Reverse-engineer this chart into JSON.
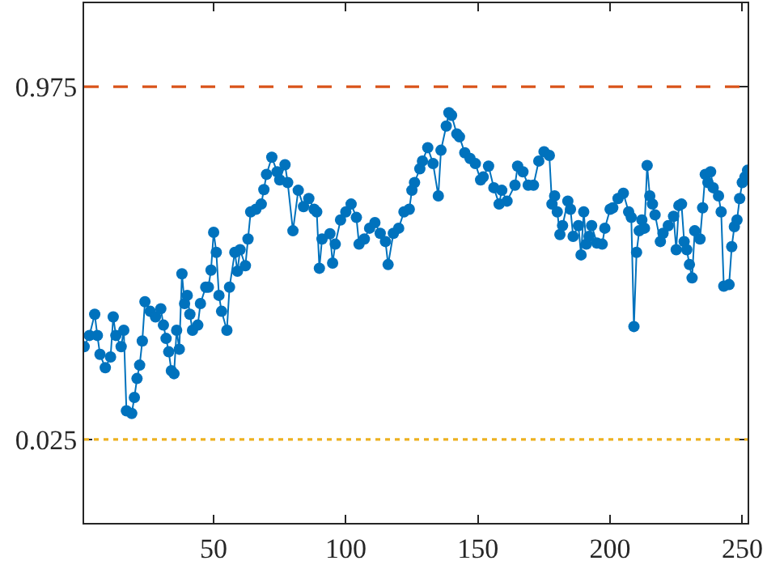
{
  "chart_data": {
    "type": "line",
    "marker": "circle",
    "line_style": "solid",
    "xlim": [
      1,
      252
    ],
    "xticks": [
      50,
      100,
      150,
      200,
      250
    ],
    "ylim": [
      -0.2,
      1.2
    ],
    "yticks": [
      0.025,
      0.975
    ],
    "ref_lines": [
      {
        "axis": "y",
        "value": 0.975,
        "color": "#d95319",
        "line_style": "dashed"
      },
      {
        "axis": "y",
        "value": 0.025,
        "color": "#edb120",
        "line_style": "dotted"
      }
    ],
    "series": [
      {
        "color": "#0072bd",
        "x": [
          1,
          3,
          5,
          6,
          7,
          9,
          11,
          12,
          13,
          15,
          16,
          17,
          19,
          20,
          21,
          22,
          23,
          24,
          26,
          28,
          30,
          31,
          32,
          33,
          34,
          35,
          36,
          37,
          38,
          39,
          40,
          41,
          42,
          44,
          45,
          47,
          48,
          49,
          50,
          51,
          52,
          53,
          55,
          56,
          58,
          59,
          60,
          62,
          63,
          64,
          66,
          68,
          69,
          70,
          72,
          74,
          75,
          77,
          78,
          80,
          82,
          84,
          86,
          88,
          89,
          90,
          91,
          94,
          95,
          96,
          98,
          100,
          102,
          104,
          105,
          107,
          109,
          111,
          113,
          115,
          116,
          118,
          120,
          122,
          124,
          125,
          126,
          128,
          129,
          131,
          133,
          135,
          136,
          138,
          139,
          140,
          142,
          143,
          145,
          147,
          149,
          151,
          152,
          154,
          156,
          158,
          159,
          161,
          164,
          165,
          167,
          169,
          171,
          173,
          175,
          177,
          178,
          179,
          180,
          181,
          182,
          184,
          185,
          186,
          188,
          189,
          190,
          191,
          192,
          193,
          195,
          197,
          198,
          200,
          201,
          203,
          205,
          207,
          208,
          209,
          210,
          211,
          212,
          213,
          214,
          215,
          216,
          217,
          219,
          220,
          222,
          224,
          225,
          226,
          227,
          228,
          229,
          230,
          231,
          232,
          234,
          235,
          236,
          237,
          238,
          239,
          241,
          242,
          243,
          245,
          246,
          247,
          248,
          249,
          250,
          251,
          252
        ],
        "values": [
          0.275,
          0.305,
          0.362,
          0.305,
          0.254,
          0.218,
          0.247,
          0.355,
          0.305,
          0.275,
          0.319,
          0.102,
          0.095,
          0.138,
          0.189,
          0.225,
          0.29,
          0.396,
          0.37,
          0.355,
          0.377,
          0.333,
          0.297,
          0.261,
          0.21,
          0.202,
          0.319,
          0.268,
          0.471,
          0.391,
          0.413,
          0.362,
          0.319,
          0.333,
          0.391,
          0.435,
          0.435,
          0.481,
          0.583,
          0.529,
          0.413,
          0.37,
          0.319,
          0.435,
          0.529,
          0.478,
          0.536,
          0.493,
          0.565,
          0.638,
          0.645,
          0.659,
          0.698,
          0.739,
          0.785,
          0.746,
          0.724,
          0.765,
          0.717,
          0.587,
          0.696,
          0.652,
          0.674,
          0.645,
          0.638,
          0.486,
          0.565,
          0.579,
          0.5,
          0.551,
          0.616,
          0.638,
          0.659,
          0.623,
          0.551,
          0.565,
          0.594,
          0.609,
          0.58,
          0.558,
          0.496,
          0.58,
          0.594,
          0.638,
          0.645,
          0.696,
          0.717,
          0.754,
          0.775,
          0.811,
          0.768,
          0.681,
          0.804,
          0.869,
          0.905,
          0.898,
          0.848,
          0.84,
          0.797,
          0.782,
          0.768,
          0.724,
          0.732,
          0.761,
          0.703,
          0.659,
          0.696,
          0.667,
          0.71,
          0.761,
          0.746,
          0.71,
          0.71,
          0.775,
          0.8,
          0.79,
          0.659,
          0.681,
          0.638,
          0.577,
          0.601,
          0.667,
          0.645,
          0.572,
          0.601,
          0.522,
          0.638,
          0.551,
          0.572,
          0.601,
          0.554,
          0.551,
          0.594,
          0.645,
          0.649,
          0.674,
          0.688,
          0.638,
          0.623,
          0.329,
          0.529,
          0.587,
          0.616,
          0.594,
          0.763,
          0.681,
          0.659,
          0.63,
          0.558,
          0.58,
          0.601,
          0.626,
          0.536,
          0.655,
          0.659,
          0.558,
          0.536,
          0.496,
          0.46,
          0.587,
          0.565,
          0.649,
          0.739,
          0.717,
          0.746,
          0.703,
          0.681,
          0.638,
          0.438,
          0.442,
          0.544,
          0.598,
          0.616,
          0.674,
          0.717,
          0.732,
          0.75
        ]
      }
    ]
  }
}
